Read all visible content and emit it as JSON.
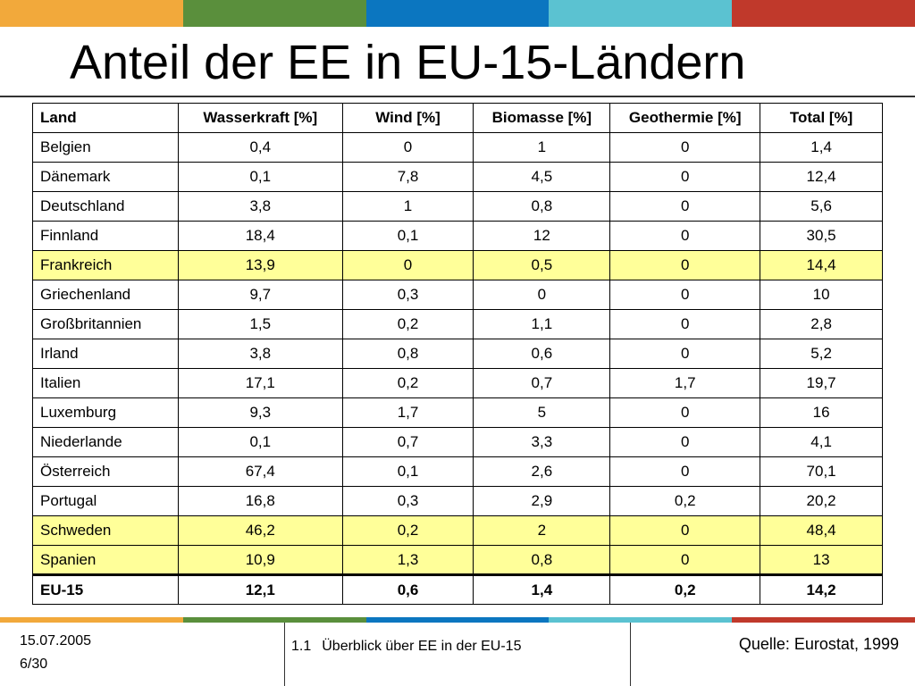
{
  "colors": {
    "bar": [
      "#f2a93b",
      "#5a8f3c",
      "#0b76c0",
      "#5bc2d1",
      "#c0392b"
    ],
    "highlight": "#ffff99"
  },
  "slide": {
    "title": "Anteil der EE in EU-15-Ländern"
  },
  "table": {
    "headers": [
      "Land",
      "Wasserkraft [%]",
      "Wind [%]",
      "Biomasse [%]",
      "Geothermie [%]",
      "Total [%]"
    ],
    "rows": [
      {
        "land": "Belgien",
        "wasser": "0,4",
        "wind": "0",
        "bio": "1",
        "geo": "0",
        "total": "1,4"
      },
      {
        "land": "Dänemark",
        "wasser": "0,1",
        "wind": "7,8",
        "bio": "4,5",
        "geo": "0",
        "total": "12,4"
      },
      {
        "land": "Deutschland",
        "wasser": "3,8",
        "wind": "1",
        "bio": "0,8",
        "geo": "0",
        "total": "5,6"
      },
      {
        "land": "Finnland",
        "wasser": "18,4",
        "wind": "0,1",
        "bio": "12",
        "geo": "0",
        "total": "30,5"
      },
      {
        "land": "Frankreich",
        "wasser": "13,9",
        "wind": "0",
        "bio": "0,5",
        "geo": "0",
        "total": "14,4",
        "highlight": true
      },
      {
        "land": "Griechenland",
        "wasser": "9,7",
        "wind": "0,3",
        "bio": "0",
        "geo": "0",
        "total": "10"
      },
      {
        "land": "Großbritannien",
        "wasser": "1,5",
        "wind": "0,2",
        "bio": "1,1",
        "geo": "0",
        "total": "2,8"
      },
      {
        "land": "Irland",
        "wasser": "3,8",
        "wind": "0,8",
        "bio": "0,6",
        "geo": "0",
        "total": "5,2"
      },
      {
        "land": "Italien",
        "wasser": "17,1",
        "wind": "0,2",
        "bio": "0,7",
        "geo": "1,7",
        "total": "19,7"
      },
      {
        "land": "Luxemburg",
        "wasser": "9,3",
        "wind": "1,7",
        "bio": "5",
        "geo": "0",
        "total": "16"
      },
      {
        "land": "Niederlande",
        "wasser": "0,1",
        "wind": "0,7",
        "bio": "3,3",
        "geo": "0",
        "total": "4,1"
      },
      {
        "land": "Österreich",
        "wasser": "67,4",
        "wind": "0,1",
        "bio": "2,6",
        "geo": "0",
        "total": "70,1"
      },
      {
        "land": "Portugal",
        "wasser": "16,8",
        "wind": "0,3",
        "bio": "2,9",
        "geo": "0,2",
        "total": "20,2"
      },
      {
        "land": "Schweden",
        "wasser": "46,2",
        "wind": "0,2",
        "bio": "2",
        "geo": "0",
        "total": "48,4",
        "highlight": true
      },
      {
        "land": "Spanien",
        "wasser": "10,9",
        "wind": "1,3",
        "bio": "0,8",
        "geo": "0",
        "total": "13",
        "highlight": true
      }
    ],
    "total_row": {
      "land": "EU-15",
      "wasser": "12,1",
      "wind": "0,6",
      "bio": "1,4",
      "geo": "0,2",
      "total": "14,2"
    }
  },
  "footer": {
    "date": "15.07.2005",
    "page": "6/30",
    "section_number": "1.1",
    "section_title": "Überblick über EE in der EU-15",
    "source": "Quelle: Eurostat, 1999"
  }
}
